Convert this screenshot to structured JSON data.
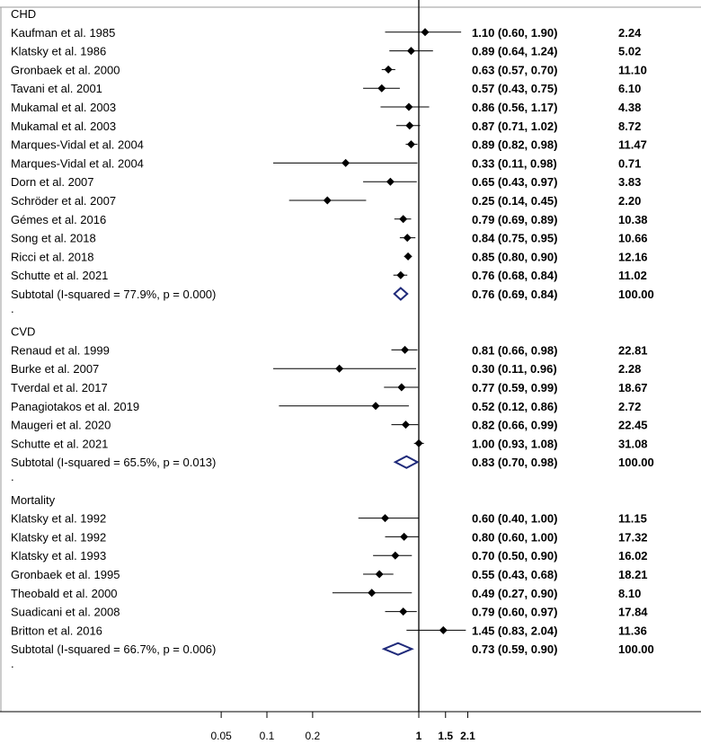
{
  "chart_data": {
    "type": "forest",
    "scale": "log",
    "reference_line": 1,
    "x_ticks": [
      {
        "value": 0.05,
        "label": "0.05"
      },
      {
        "value": 0.1,
        "label": "0.1"
      },
      {
        "value": 0.2,
        "label": "0.2"
      },
      {
        "value": 1,
        "label": "1"
      },
      {
        "value": 1.5,
        "label": "1.5"
      },
      {
        "value": 2.1,
        "label": "2.1"
      }
    ],
    "colors": {
      "pooled_diamond": "#1f2a7a",
      "marker": "#000000"
    },
    "groups": [
      {
        "name": "CHD",
        "studies": [
          {
            "label": "Kaufman et al. 1985",
            "est": 1.1,
            "lo": 0.6,
            "hi": 1.9,
            "ci_text": "1.10 (0.60, 1.90)",
            "weight": "2.24"
          },
          {
            "label": "Klatsky et al. 1986",
            "est": 0.89,
            "lo": 0.64,
            "hi": 1.24,
            "ci_text": "0.89 (0.64, 1.24)",
            "weight": "5.02"
          },
          {
            "label": "Gronbaek et al. 2000",
            "est": 0.63,
            "lo": 0.57,
            "hi": 0.7,
            "ci_text": "0.63 (0.57, 0.70)",
            "weight": "11.10"
          },
          {
            "label": "Tavani et al. 2001",
            "est": 0.57,
            "lo": 0.43,
            "hi": 0.75,
            "ci_text": "0.57 (0.43, 0.75)",
            "weight": "6.10"
          },
          {
            "label": "Mukamal et al. 2003",
            "est": 0.86,
            "lo": 0.56,
            "hi": 1.17,
            "ci_text": "0.86 (0.56, 1.17)",
            "weight": "4.38"
          },
          {
            "label": "Mukamal et al. 2003",
            "est": 0.87,
            "lo": 0.71,
            "hi": 1.02,
            "ci_text": "0.87 (0.71, 1.02)",
            "weight": "8.72"
          },
          {
            "label": "Marques-Vidal et al. 2004",
            "est": 0.89,
            "lo": 0.82,
            "hi": 0.98,
            "ci_text": "0.89 (0.82, 0.98)",
            "weight": "11.47"
          },
          {
            "label": "Marques-Vidal et al. 2004",
            "est": 0.33,
            "lo": 0.11,
            "hi": 0.98,
            "ci_text": "0.33 (0.11, 0.98)",
            "weight": "0.71"
          },
          {
            "label": "Dorn et al. 2007",
            "est": 0.65,
            "lo": 0.43,
            "hi": 0.97,
            "ci_text": "0.65 (0.43, 0.97)",
            "weight": "3.83"
          },
          {
            "label": "Schröder et al. 2007",
            "est": 0.25,
            "lo": 0.14,
            "hi": 0.45,
            "ci_text": "0.25 (0.14, 0.45)",
            "weight": "2.20"
          },
          {
            "label": "Gémes et al. 2016",
            "est": 0.79,
            "lo": 0.69,
            "hi": 0.89,
            "ci_text": "0.79 (0.69, 0.89)",
            "weight": "10.38"
          },
          {
            "label": "Song et al. 2018",
            "est": 0.84,
            "lo": 0.75,
            "hi": 0.95,
            "ci_text": "0.84 (0.75, 0.95)",
            "weight": "10.66"
          },
          {
            "label": "Ricci et al. 2018",
            "est": 0.85,
            "lo": 0.8,
            "hi": 0.9,
            "ci_text": "0.85 (0.80, 0.90)",
            "weight": "12.16"
          },
          {
            "label": "Schutte et al. 2021",
            "est": 0.76,
            "lo": 0.68,
            "hi": 0.84,
            "ci_text": "0.76 (0.68, 0.84)",
            "weight": "11.02"
          }
        ],
        "subtotal": {
          "label": "Subtotal  (I-squared = 77.9%, p = 0.000)",
          "est": 0.76,
          "lo": 0.69,
          "hi": 0.84,
          "ci_text": "0.76 (0.69, 0.84)",
          "weight": "100.00"
        }
      },
      {
        "name": "CVD",
        "studies": [
          {
            "label": "Renaud et al. 1999",
            "est": 0.81,
            "lo": 0.66,
            "hi": 0.98,
            "ci_text": "0.81 (0.66, 0.98)",
            "weight": "22.81"
          },
          {
            "label": "Burke et al. 2007",
            "est": 0.3,
            "lo": 0.11,
            "hi": 0.96,
            "ci_text": "0.30 (0.11, 0.96)",
            "weight": "2.28"
          },
          {
            "label": "Tverdal et al. 2017",
            "est": 0.77,
            "lo": 0.59,
            "hi": 0.99,
            "ci_text": "0.77 (0.59, 0.99)",
            "weight": "18.67"
          },
          {
            "label": "Panagiotakos et al. 2019",
            "est": 0.52,
            "lo": 0.12,
            "hi": 0.86,
            "ci_text": "0.52 (0.12, 0.86)",
            "weight": "2.72"
          },
          {
            "label": "Maugeri et al. 2020",
            "est": 0.82,
            "lo": 0.66,
            "hi": 0.99,
            "ci_text": "0.82 (0.66, 0.99)",
            "weight": "22.45"
          },
          {
            "label": "Schutte et al. 2021",
            "est": 1.0,
            "lo": 0.93,
            "hi": 1.08,
            "ci_text": "1.00 (0.93, 1.08)",
            "weight": "31.08"
          }
        ],
        "subtotal": {
          "label": "Subtotal  (I-squared = 65.5%, p = 0.013)",
          "est": 0.83,
          "lo": 0.7,
          "hi": 0.98,
          "ci_text": "0.83 (0.70, 0.98)",
          "weight": "100.00"
        }
      },
      {
        "name": "Mortality",
        "studies": [
          {
            "label": "Klatsky et al. 1992",
            "est": 0.6,
            "lo": 0.4,
            "hi": 1.0,
            "ci_text": "0.60 (0.40, 1.00)",
            "weight": "11.15"
          },
          {
            "label": "Klatsky et al. 1992",
            "est": 0.8,
            "lo": 0.6,
            "hi": 1.0,
            "ci_text": "0.80 (0.60, 1.00)",
            "weight": "17.32"
          },
          {
            "label": "Klatsky et al. 1993",
            "est": 0.7,
            "lo": 0.5,
            "hi": 0.9,
            "ci_text": "0.70 (0.50, 0.90)",
            "weight": "16.02"
          },
          {
            "label": "Gronbaek et al. 1995",
            "est": 0.55,
            "lo": 0.43,
            "hi": 0.68,
            "ci_text": "0.55 (0.43, 0.68)",
            "weight": "18.21"
          },
          {
            "label": "Theobald et al. 2000",
            "est": 0.49,
            "lo": 0.27,
            "hi": 0.9,
            "ci_text": "0.49 (0.27, 0.90)",
            "weight": "8.10"
          },
          {
            "label": "Suadicani et al. 2008",
            "est": 0.79,
            "lo": 0.6,
            "hi": 0.97,
            "ci_text": "0.79 (0.60, 0.97)",
            "weight": "17.84"
          },
          {
            "label": "Britton et al. 2016",
            "est": 1.45,
            "lo": 0.83,
            "hi": 2.04,
            "ci_text": "1.45 (0.83, 2.04)",
            "weight": "11.36"
          }
        ],
        "subtotal": {
          "label": "Subtotal  (I-squared = 66.7%, p = 0.006)",
          "est": 0.73,
          "lo": 0.59,
          "hi": 0.9,
          "ci_text": "0.73 (0.59, 0.90)",
          "weight": "100.00"
        }
      }
    ],
    "group_separator": "."
  }
}
